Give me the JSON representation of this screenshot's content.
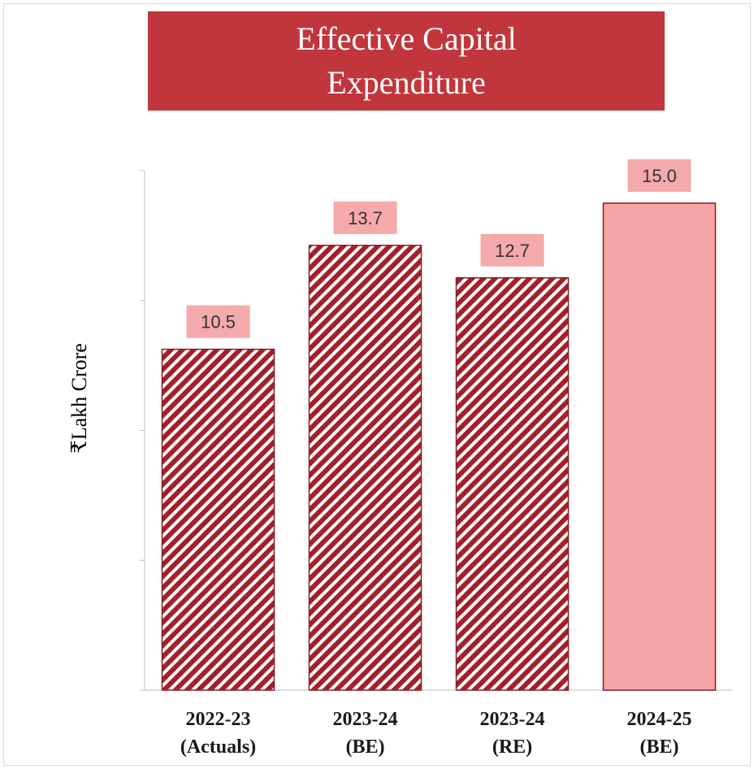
{
  "chart_data": {
    "type": "bar",
    "title": "Effective Capital Expenditure",
    "ylabel": "₹Lakh Crore",
    "xlabel": "",
    "ylim": [
      0,
      16
    ],
    "yticks": [
      0,
      4,
      8,
      12,
      16
    ],
    "y_tick_labels_shown": false,
    "grid": false,
    "categories": [
      [
        "2022-23",
        "(Actuals)"
      ],
      [
        "2023-24",
        "(BE)"
      ],
      [
        "2023-24",
        "(RE)"
      ],
      [
        "2024-25",
        "(BE)"
      ]
    ],
    "values": [
      10.5,
      13.7,
      12.7,
      15.0
    ],
    "value_labels": [
      "10.5",
      "13.7",
      "12.7",
      "15.0"
    ],
    "bar_styles": [
      "hatched",
      "hatched",
      "hatched",
      "solid"
    ],
    "colors": {
      "title_bg": "#c0363c",
      "title_text": "#ffffff",
      "hatch_dark": "#a3202a",
      "hatch_light": "#ffffff",
      "solid_fill": "#f7a4a6",
      "bar_border": "#8b1a24",
      "label_bg": "#f4a9ab",
      "axis": "#bfbfbf"
    }
  }
}
